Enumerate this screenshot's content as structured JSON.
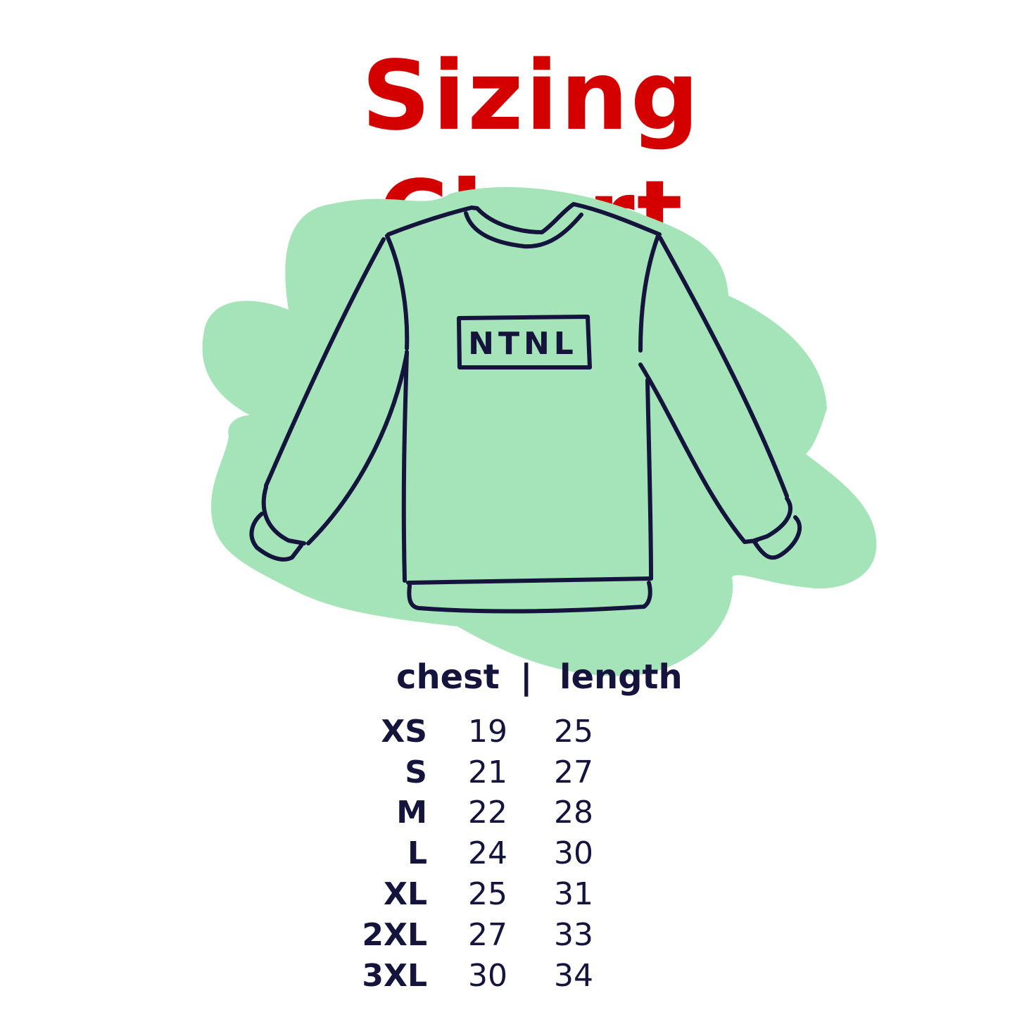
{
  "title": "Sizing Chart",
  "logo_text": "NTNL",
  "colors": {
    "title": "#d40000",
    "ink": "#14143c",
    "blob": "#a4e4b8"
  },
  "table": {
    "headers": {
      "chest": "chest",
      "separator": "|",
      "length": "length"
    },
    "rows": [
      {
        "size": "XS",
        "chest": "19",
        "length": "25"
      },
      {
        "size": "S",
        "chest": "21",
        "length": "27"
      },
      {
        "size": "M",
        "chest": "22",
        "length": "28"
      },
      {
        "size": "L",
        "chest": "24",
        "length": "30"
      },
      {
        "size": "XL",
        "chest": "25",
        "length": "31"
      },
      {
        "size": "2XL",
        "chest": "27",
        "length": "33"
      },
      {
        "size": "3XL",
        "chest": "30",
        "length": "34"
      }
    ]
  }
}
